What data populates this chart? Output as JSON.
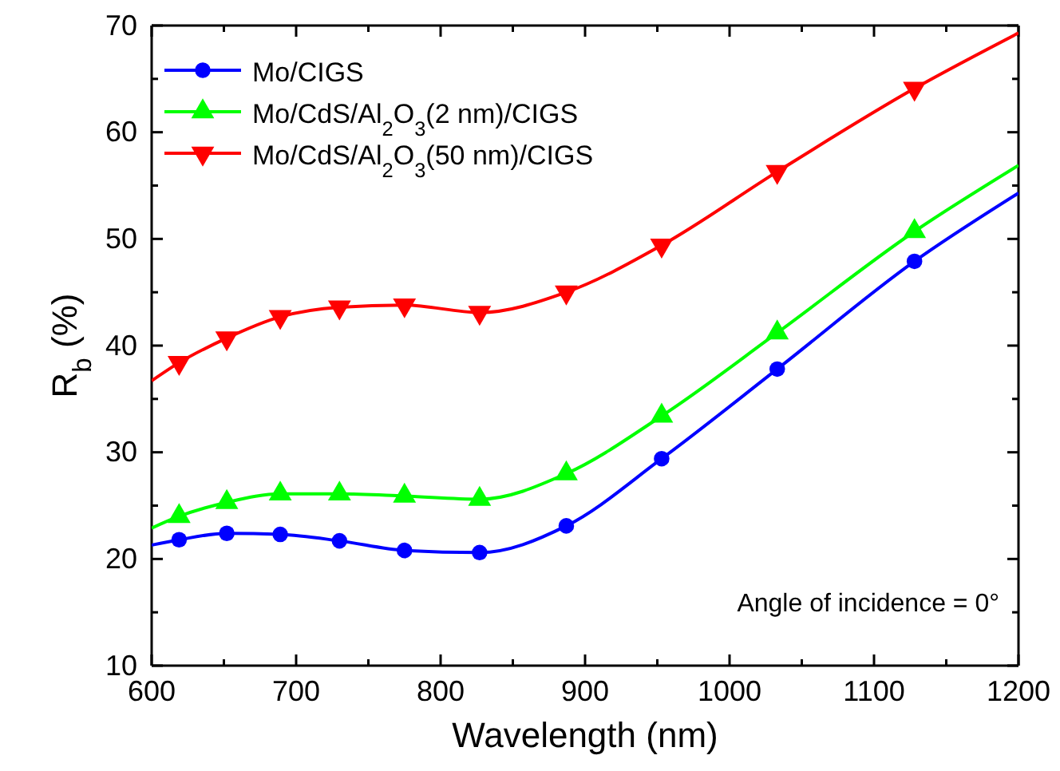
{
  "chart_data": {
    "type": "line",
    "xlabel": "Wavelength (nm)",
    "ylabel": "R$_{b}$ (%)",
    "xlim": [
      600,
      1200
    ],
    "ylim": [
      10,
      70
    ],
    "xticks": [
      600,
      {
        "value": 650,
        "label": null
      },
      700,
      {
        "value": 750,
        "label": null
      },
      800,
      {
        "value": 850,
        "label": null
      },
      900,
      {
        "value": 950,
        "label": null
      },
      1000,
      {
        "value": 1050,
        "label": null
      },
      1100,
      {
        "value": 1150,
        "label": null
      },
      1200
    ],
    "yticks": [
      10,
      {
        "value": 15,
        "label": null
      },
      20,
      {
        "value": 25,
        "label": null
      },
      30,
      {
        "value": 35,
        "label": null
      },
      40,
      {
        "value": 45,
        "label": null
      },
      50,
      {
        "value": 55,
        "label": null
      },
      60,
      {
        "value": 65,
        "label": null
      },
      70
    ],
    "x": [
      600,
      619,
      652,
      689,
      730,
      775,
      827,
      887,
      953,
      1033,
      1128,
      1200
    ],
    "series": [
      {
        "name": "Mo/CIGS",
        "color": "#0000ff",
        "marker": "circle",
        "values": [
          21.3,
          21.8,
          22.4,
          22.3,
          21.7,
          20.8,
          20.6,
          23.1,
          29.4,
          37.8,
          47.9,
          54.3
        ]
      },
      {
        "name": "Mo/CdS/Al$_{2}$O$_{3}$(2 nm)/CIGS",
        "color": "#00ff00",
        "marker": "triangle",
        "values": [
          22.9,
          24.0,
          25.3,
          26.1,
          26.1,
          25.9,
          25.6,
          28.0,
          33.4,
          41.2,
          50.7,
          56.9
        ]
      },
      {
        "name": "Mo/CdS/Al$_{2}$O$_{3}$(50 nm)/CIGS",
        "color": "#ff0000",
        "marker": "triangle-down",
        "values": [
          36.7,
          38.4,
          40.7,
          42.7,
          43.6,
          43.8,
          43.1,
          45.0,
          49.4,
          56.3,
          64.1,
          69.3
        ]
      }
    ],
    "legend": "top left",
    "grid": false,
    "line_style": "solid",
    "annotations": [
      "Angle of incidence = 0°"
    ]
  }
}
